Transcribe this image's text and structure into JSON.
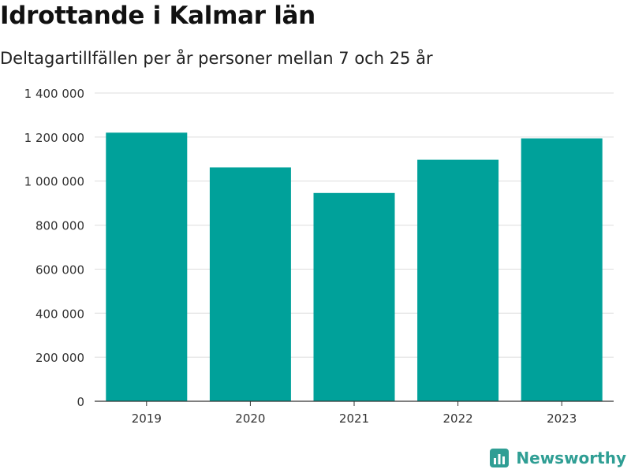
{
  "header": {
    "title": "Idrottande i Kalmar län",
    "subtitle": "Deltagartillfällen per år personer mellan 7 och 25 år"
  },
  "brand": {
    "name": "Newsworthy",
    "icon": "bar-chart-logo-icon",
    "color": "#2f9e94"
  },
  "chart_data": {
    "type": "bar",
    "title": "Idrottande i Kalmar län",
    "subtitle": "Deltagartillfällen per år personer mellan 7 och 25 år",
    "xlabel": "",
    "ylabel": "",
    "categories": [
      "2019",
      "2020",
      "2021",
      "2022",
      "2023"
    ],
    "values": [
      1220000,
      1062000,
      946000,
      1097000,
      1194000
    ],
    "ylim": [
      0,
      1400000
    ],
    "yticks": [
      0,
      200000,
      400000,
      600000,
      800000,
      1000000,
      1200000,
      1400000
    ],
    "ytick_labels": [
      "0",
      "200 000",
      "400 000",
      "600 000",
      "800 000",
      "1 000 000",
      "1 200 000",
      "1 400 000"
    ],
    "bar_color": "#00a19a",
    "grid": true,
    "legend": "none"
  }
}
